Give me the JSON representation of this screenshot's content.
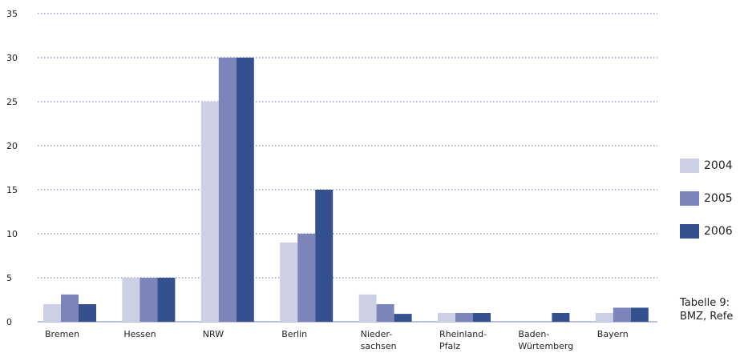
{
  "chart_data": {
    "type": "bar",
    "categories": [
      "Bremen",
      "Hessen",
      "NRW",
      "Berlin",
      "Nieder-\nsachsen",
      "Rheinland-\nPfalz",
      "Baden-\nWürtemberg",
      "Bayern"
    ],
    "series": [
      {
        "name": "2004",
        "color": "#cdd0e5",
        "values": [
          2,
          5,
          25,
          9,
          3.1,
          1,
          0,
          1
        ]
      },
      {
        "name": "2005",
        "color": "#7b85ba",
        "values": [
          3.1,
          5,
          30,
          10,
          2,
          1,
          0,
          1.6
        ]
      },
      {
        "name": "2006",
        "color": "#34508e",
        "values": [
          2,
          5,
          30,
          15,
          0.9,
          1,
          1,
          1.6
        ]
      }
    ],
    "ylim": [
      0,
      35
    ],
    "yticks": [
      0,
      5,
      10,
      15,
      20,
      25,
      30,
      35
    ],
    "grid": true,
    "legend_position": "right"
  },
  "caption": {
    "line1": "Tabelle 9:",
    "line2": "BMZ, Refe"
  }
}
